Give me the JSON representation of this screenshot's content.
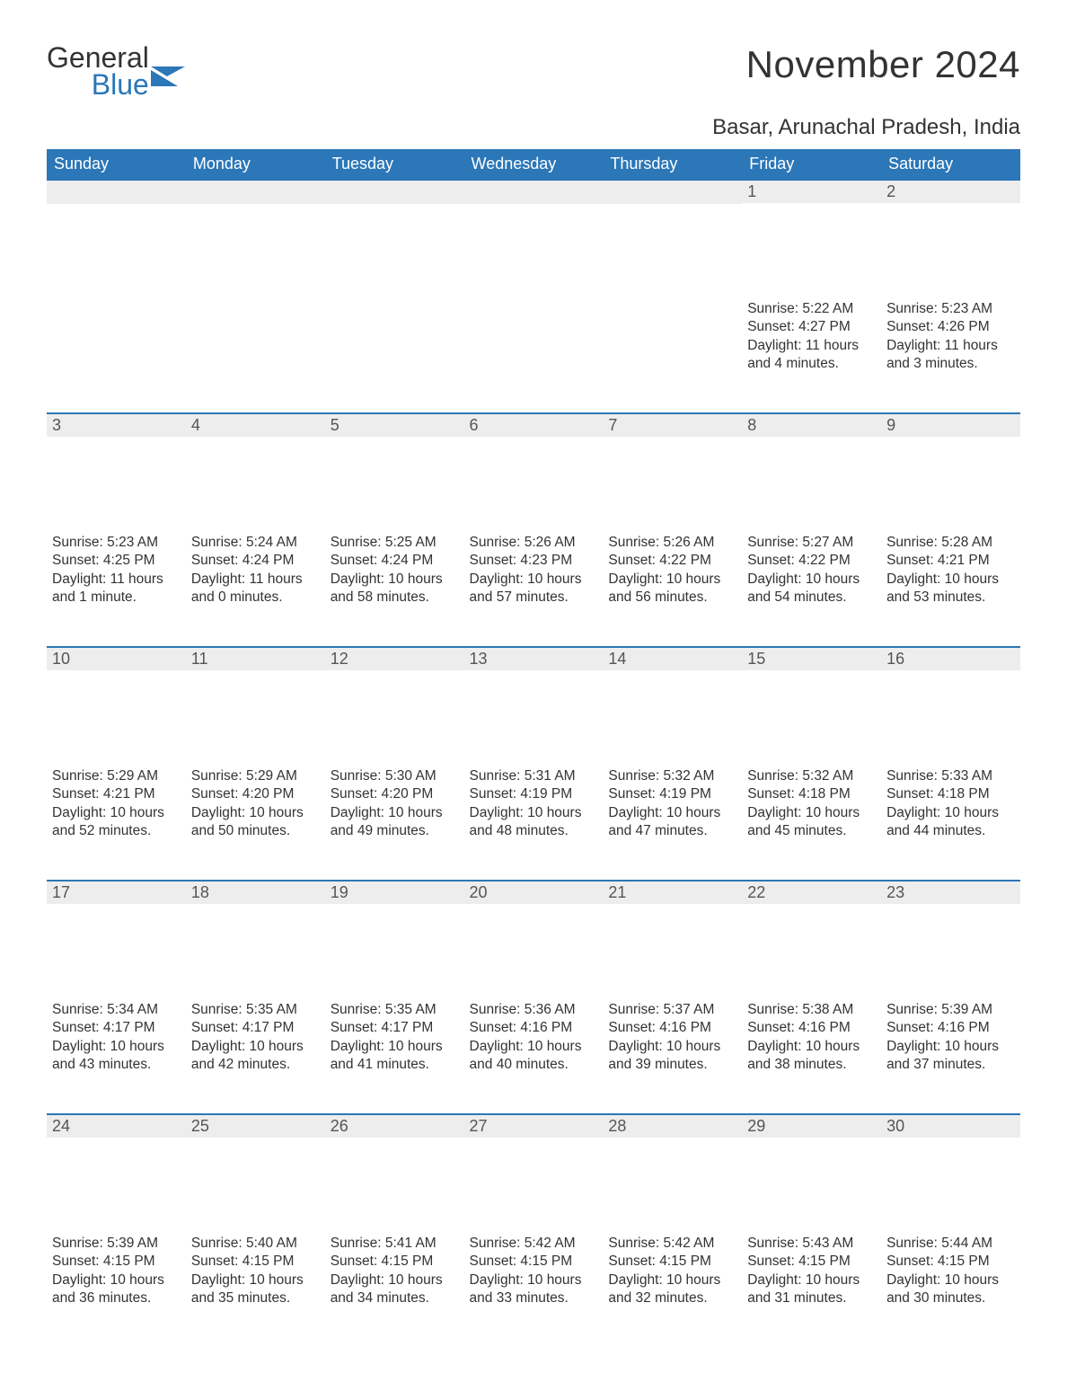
{
  "brand": {
    "name_part1": "General",
    "name_part2": "Blue",
    "flag_color": "#2b77b8"
  },
  "title": "November 2024",
  "location": "Basar, Arunachal Pradesh, India",
  "colors": {
    "header_bg": "#2b77b8",
    "header_text": "#ffffff",
    "daynum_bg": "#ededed",
    "daynum_text": "#555555",
    "body_text": "#333333",
    "page_bg": "#ffffff",
    "row_border": "#2b77b8"
  },
  "fonts": {
    "title_pt": 42,
    "location_pt": 24,
    "header_pt": 18,
    "daynum_pt": 18,
    "body_pt": 15.5
  },
  "weekdays": [
    "Sunday",
    "Monday",
    "Tuesday",
    "Wednesday",
    "Thursday",
    "Friday",
    "Saturday"
  ],
  "sunrise_label": "Sunrise: ",
  "sunset_label": "Sunset: ",
  "daylight_label": "Daylight: ",
  "weeks": [
    [
      null,
      null,
      null,
      null,
      null,
      {
        "day": "1",
        "sunrise": "5:22 AM",
        "sunset": "4:27 PM",
        "daylight": "11 hours and 4 minutes."
      },
      {
        "day": "2",
        "sunrise": "5:23 AM",
        "sunset": "4:26 PM",
        "daylight": "11 hours and 3 minutes."
      }
    ],
    [
      {
        "day": "3",
        "sunrise": "5:23 AM",
        "sunset": "4:25 PM",
        "daylight": "11 hours and 1 minute."
      },
      {
        "day": "4",
        "sunrise": "5:24 AM",
        "sunset": "4:24 PM",
        "daylight": "11 hours and 0 minutes."
      },
      {
        "day": "5",
        "sunrise": "5:25 AM",
        "sunset": "4:24 PM",
        "daylight": "10 hours and 58 minutes."
      },
      {
        "day": "6",
        "sunrise": "5:26 AM",
        "sunset": "4:23 PM",
        "daylight": "10 hours and 57 minutes."
      },
      {
        "day": "7",
        "sunrise": "5:26 AM",
        "sunset": "4:22 PM",
        "daylight": "10 hours and 56 minutes."
      },
      {
        "day": "8",
        "sunrise": "5:27 AM",
        "sunset": "4:22 PM",
        "daylight": "10 hours and 54 minutes."
      },
      {
        "day": "9",
        "sunrise": "5:28 AM",
        "sunset": "4:21 PM",
        "daylight": "10 hours and 53 minutes."
      }
    ],
    [
      {
        "day": "10",
        "sunrise": "5:29 AM",
        "sunset": "4:21 PM",
        "daylight": "10 hours and 52 minutes."
      },
      {
        "day": "11",
        "sunrise": "5:29 AM",
        "sunset": "4:20 PM",
        "daylight": "10 hours and 50 minutes."
      },
      {
        "day": "12",
        "sunrise": "5:30 AM",
        "sunset": "4:20 PM",
        "daylight": "10 hours and 49 minutes."
      },
      {
        "day": "13",
        "sunrise": "5:31 AM",
        "sunset": "4:19 PM",
        "daylight": "10 hours and 48 minutes."
      },
      {
        "day": "14",
        "sunrise": "5:32 AM",
        "sunset": "4:19 PM",
        "daylight": "10 hours and 47 minutes."
      },
      {
        "day": "15",
        "sunrise": "5:32 AM",
        "sunset": "4:18 PM",
        "daylight": "10 hours and 45 minutes."
      },
      {
        "day": "16",
        "sunrise": "5:33 AM",
        "sunset": "4:18 PM",
        "daylight": "10 hours and 44 minutes."
      }
    ],
    [
      {
        "day": "17",
        "sunrise": "5:34 AM",
        "sunset": "4:17 PM",
        "daylight": "10 hours and 43 minutes."
      },
      {
        "day": "18",
        "sunrise": "5:35 AM",
        "sunset": "4:17 PM",
        "daylight": "10 hours and 42 minutes."
      },
      {
        "day": "19",
        "sunrise": "5:35 AM",
        "sunset": "4:17 PM",
        "daylight": "10 hours and 41 minutes."
      },
      {
        "day": "20",
        "sunrise": "5:36 AM",
        "sunset": "4:16 PM",
        "daylight": "10 hours and 40 minutes."
      },
      {
        "day": "21",
        "sunrise": "5:37 AM",
        "sunset": "4:16 PM",
        "daylight": "10 hours and 39 minutes."
      },
      {
        "day": "22",
        "sunrise": "5:38 AM",
        "sunset": "4:16 PM",
        "daylight": "10 hours and 38 minutes."
      },
      {
        "day": "23",
        "sunrise": "5:39 AM",
        "sunset": "4:16 PM",
        "daylight": "10 hours and 37 minutes."
      }
    ],
    [
      {
        "day": "24",
        "sunrise": "5:39 AM",
        "sunset": "4:15 PM",
        "daylight": "10 hours and 36 minutes."
      },
      {
        "day": "25",
        "sunrise": "5:40 AM",
        "sunset": "4:15 PM",
        "daylight": "10 hours and 35 minutes."
      },
      {
        "day": "26",
        "sunrise": "5:41 AM",
        "sunset": "4:15 PM",
        "daylight": "10 hours and 34 minutes."
      },
      {
        "day": "27",
        "sunrise": "5:42 AM",
        "sunset": "4:15 PM",
        "daylight": "10 hours and 33 minutes."
      },
      {
        "day": "28",
        "sunrise": "5:42 AM",
        "sunset": "4:15 PM",
        "daylight": "10 hours and 32 minutes."
      },
      {
        "day": "29",
        "sunrise": "5:43 AM",
        "sunset": "4:15 PM",
        "daylight": "10 hours and 31 minutes."
      },
      {
        "day": "30",
        "sunrise": "5:44 AM",
        "sunset": "4:15 PM",
        "daylight": "10 hours and 30 minutes."
      }
    ]
  ]
}
